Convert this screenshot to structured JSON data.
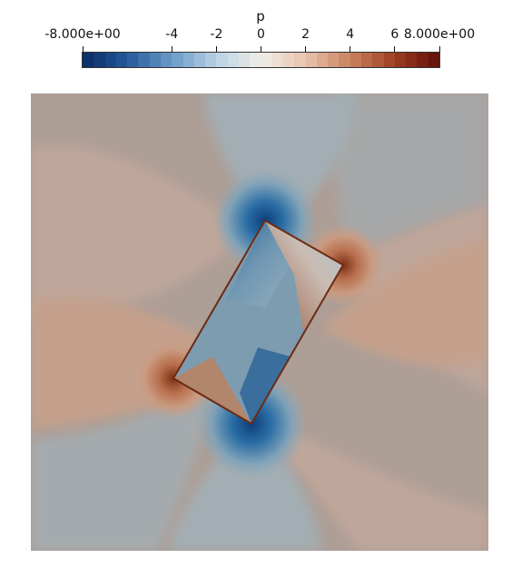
{
  "legend": {
    "title": "p",
    "ticks": [
      {
        "label": "-8.000e+00",
        "value": -8
      },
      {
        "label": "-4",
        "value": -4
      },
      {
        "label": "-2",
        "value": -2
      },
      {
        "label": "0",
        "value": 0
      },
      {
        "label": "2",
        "value": 2
      },
      {
        "label": "4",
        "value": 4
      },
      {
        "label": "6",
        "value": 6
      },
      {
        "label": "8.000e+00",
        "value": 8
      }
    ],
    "range": [
      -8,
      8
    ],
    "bands": 32,
    "colormap": [
      "#0a2b61",
      "#24579b",
      "#6b9bc9",
      "#b9d2e3",
      "#f0ece8",
      "#e8c3ad",
      "#c9825f",
      "#9e3d22",
      "#5f0f0a"
    ]
  },
  "plot": {
    "field": "p",
    "colors": {
      "background": "#ad9e96",
      "positive_far": "#bfa69a",
      "positive_mid": "#c5a08c",
      "positive_strong": "#b07b62",
      "negative_far": "#a3aeb4",
      "negative_mid": "#8ca3b0",
      "negative_strong": "#4f7ea5",
      "negative_core": "#1c5a92",
      "rectangle_inside": "#7d9cb0",
      "edge_hot": "#7a2e12"
    }
  }
}
